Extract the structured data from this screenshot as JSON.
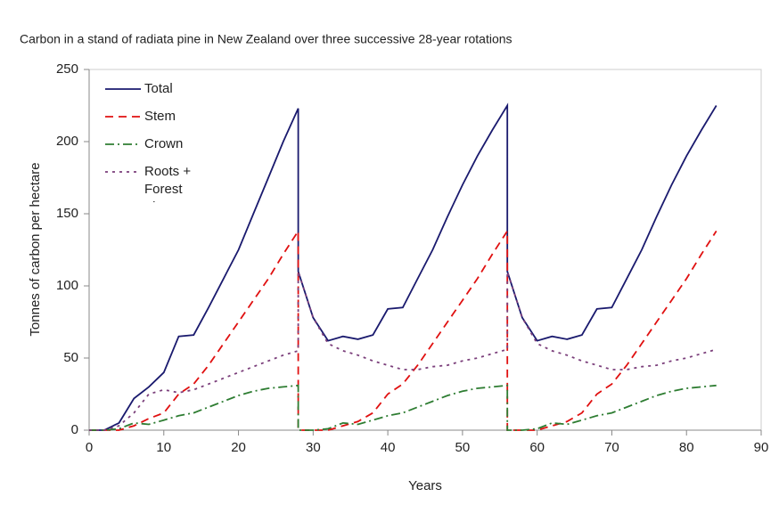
{
  "chart_data": {
    "type": "line",
    "subtitle": "Carbon in a stand of radiata pine in New Zealand over three successive 28-year rotations",
    "x_label": "Years",
    "y_label": "Tonnes of carbon per hectare",
    "x": [
      0,
      2,
      4,
      6,
      8,
      10,
      12,
      14,
      16,
      18,
      20,
      22,
      24,
      26,
      28,
      28,
      30,
      32,
      34,
      36,
      38,
      40,
      42,
      44,
      46,
      48,
      50,
      52,
      54,
      56,
      56,
      58,
      60,
      62,
      64,
      66,
      68,
      70,
      72,
      74,
      76,
      78,
      80,
      82,
      84
    ],
    "series": [
      {
        "name": "Total",
        "color": "#1a1a6e",
        "style": "solid",
        "values": [
          0,
          0,
          5,
          22,
          30,
          40,
          65,
          66,
          85,
          105,
          125,
          150,
          175,
          200,
          223,
          110,
          78,
          62,
          65,
          63,
          66,
          84,
          85,
          105,
          125,
          148,
          170,
          190,
          208,
          225,
          110,
          78,
          62,
          65,
          63,
          66,
          84,
          85,
          105,
          125,
          148,
          170,
          190,
          208,
          225
        ]
      },
      {
        "name": "Stem",
        "color": "#e01010",
        "style": "dashed",
        "values": [
          0,
          0,
          0,
          3,
          8,
          12,
          25,
          32,
          45,
          60,
          75,
          90,
          105,
          122,
          138,
          0,
          0,
          0,
          3,
          6,
          12,
          25,
          32,
          45,
          60,
          75,
          90,
          105,
          122,
          138,
          0,
          0,
          0,
          3,
          6,
          12,
          25,
          32,
          45,
          60,
          75,
          90,
          105,
          122,
          138
        ]
      },
      {
        "name": "Crown",
        "color": "#2e7d32",
        "style": "dashdot",
        "values": [
          0,
          0,
          1,
          5,
          4,
          7,
          10,
          12,
          16,
          20,
          24,
          27,
          29,
          30,
          31,
          0,
          0,
          1,
          5,
          4,
          7,
          10,
          12,
          16,
          20,
          24,
          27,
          29,
          30,
          31,
          0,
          0,
          1,
          5,
          4,
          7,
          10,
          12,
          16,
          20,
          24,
          27,
          29,
          30,
          31
        ]
      },
      {
        "name": "Roots + Forest Floor",
        "color": "#7b3f7b",
        "style": "dotted",
        "values": [
          0,
          0,
          3,
          12,
          25,
          28,
          26,
          28,
          32,
          36,
          40,
          44,
          48,
          52,
          55,
          110,
          78,
          60,
          55,
          52,
          48,
          45,
          42,
          42,
          44,
          45,
          48,
          50,
          53,
          56,
          110,
          78,
          60,
          55,
          52,
          48,
          45,
          42,
          42,
          44,
          45,
          48,
          50,
          53,
          56
        ]
      }
    ],
    "xlim": [
      0,
      90
    ],
    "xticks": [
      0,
      10,
      20,
      30,
      40,
      50,
      60,
      70,
      80,
      90
    ],
    "ylim": [
      0,
      250
    ],
    "yticks": [
      0,
      50,
      100,
      150,
      200,
      250
    ],
    "legend": "upper-left"
  }
}
